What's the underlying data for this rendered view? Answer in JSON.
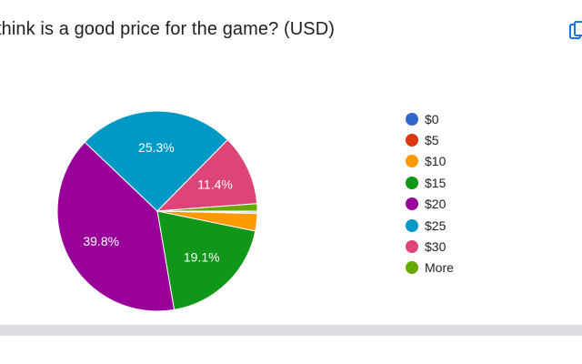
{
  "question": {
    "text": "think is a good price for the game? (USD)"
  },
  "toolbar": {
    "copy_icon": "copy-icon"
  },
  "colors": {
    "$0": "#3366cc",
    "$5": "#dc3912",
    "$10": "#ff9900",
    "$15": "#109618",
    "$20": "#990099",
    "$25": "#0099c6",
    "$30": "#dd4477",
    "More": "#66aa00"
  },
  "chart_data": {
    "type": "pie",
    "title": "",
    "categories": [
      "$0",
      "$5",
      "$10",
      "$15",
      "$20",
      "$25",
      "$30",
      "More"
    ],
    "values": [
      0.2,
      0.2,
      2.8,
      19.1,
      39.8,
      25.3,
      11.4,
      1.2
    ],
    "value_labels": [
      "",
      "",
      "",
      "19.1%",
      "39.8%",
      "25.3%",
      "11.4%",
      ""
    ],
    "legend": {
      "position": "right",
      "entries": [
        "$0",
        "$5",
        "$10",
        "$15",
        "$20",
        "$25",
        "$30",
        "More"
      ]
    }
  }
}
